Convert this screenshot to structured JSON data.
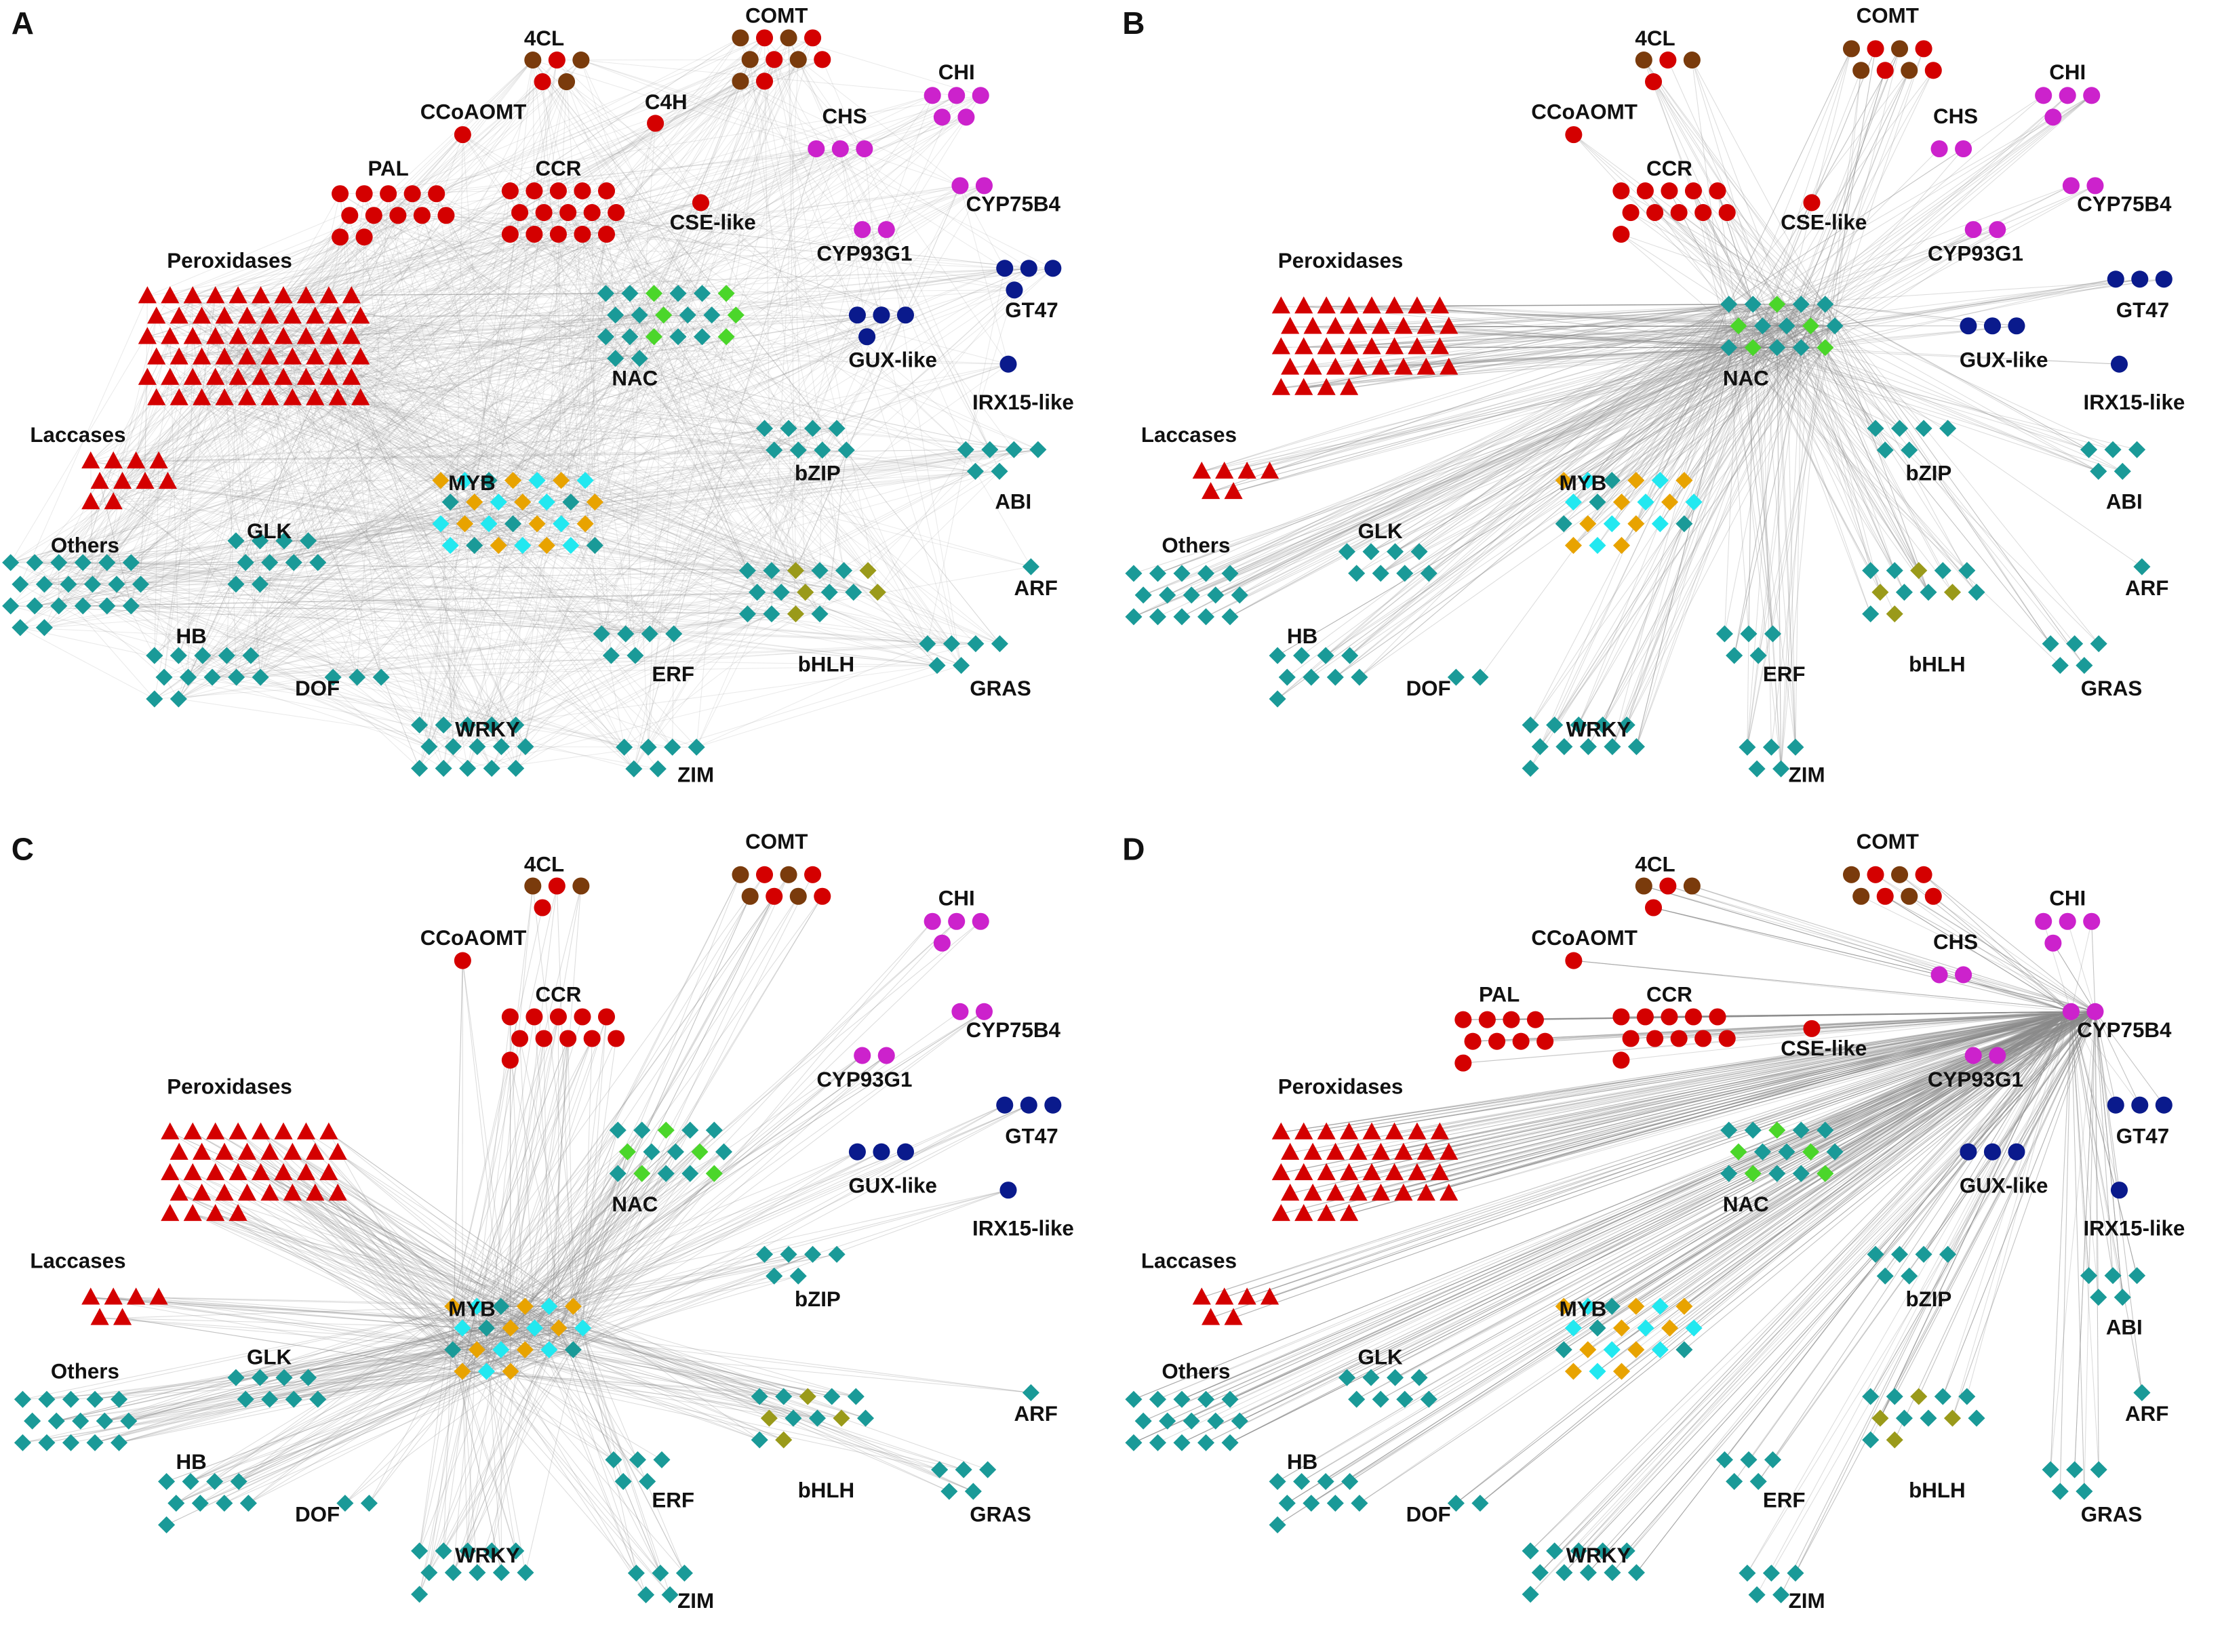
{
  "panels": [
    {
      "label": "A",
      "groups": [
        "4CL",
        "COMT",
        "CCoAOMT",
        "C4H",
        "CHI",
        "CHS",
        "PAL",
        "CCR",
        "CSE-like",
        "CYP75B4",
        "CYP93G1",
        "Peroxidases",
        "GT47",
        "GUX-like",
        "IRX15-like",
        "NAC",
        "Laccases",
        "bZIP",
        "ABI",
        "MYB",
        "Others",
        "GLK",
        "ARF",
        "HB",
        "DOF",
        "ERF",
        "bHLH",
        "GRAS",
        "WRKY",
        "ZIM"
      ]
    },
    {
      "label": "B",
      "groups": [
        "4CL",
        "COMT",
        "CCoAOMT",
        "CHI",
        "CHS",
        "CCR",
        "CSE-like",
        "CYP75B4",
        "CYP93G1",
        "Peroxidases",
        "GT47",
        "GUX-like",
        "IRX15-like",
        "NAC",
        "Laccases",
        "bZIP",
        "ABI",
        "MYB",
        "Others",
        "GLK",
        "ARF",
        "HB",
        "DOF",
        "ERF",
        "bHLH",
        "GRAS",
        "WRKY",
        "ZIM"
      ]
    },
    {
      "label": "C",
      "groups": [
        "4CL",
        "COMT",
        "CCoAOMT",
        "CHI",
        "CCR",
        "CYP75B4",
        "CYP93G1",
        "Peroxidases",
        "GT47",
        "GUX-like",
        "IRX15-like",
        "NAC",
        "Laccases",
        "bZIP",
        "MYB",
        "Others",
        "GLK",
        "ARF",
        "HB",
        "DOF",
        "ERF",
        "bHLH",
        "GRAS",
        "WRKY",
        "ZIM"
      ]
    },
    {
      "label": "D",
      "groups": [
        "4CL",
        "COMT",
        "CCoAOMT",
        "CHI",
        "CHS",
        "PAL",
        "CCR",
        "CSE-like",
        "CYP75B4",
        "CYP93G1",
        "Peroxidases",
        "GT47",
        "GUX-like",
        "IRX15-like",
        "NAC",
        "Laccases",
        "bZIP",
        "ABI",
        "MYB",
        "Others",
        "GLK",
        "ARF",
        "HB",
        "DOF",
        "ERF",
        "bHLH",
        "GRAS",
        "WRKY",
        "ZIM"
      ]
    }
  ]
}
